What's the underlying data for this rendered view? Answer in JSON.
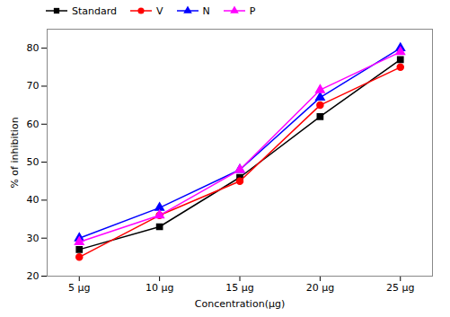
{
  "chart_data": {
    "type": "line",
    "xlabel": "Concentration(μg)",
    "ylabel": "% of inhibition",
    "x": [
      5,
      10,
      15,
      20,
      25
    ],
    "series": [
      {
        "name": "Standard",
        "color": "#000000",
        "marker": "square",
        "values": [
          27,
          33,
          46,
          62,
          77
        ]
      },
      {
        "name": "V",
        "color": "#ff0000",
        "marker": "circle",
        "values": [
          25,
          36,
          45,
          65,
          75
        ]
      },
      {
        "name": "N",
        "color": "#0000ff",
        "marker": "triangle",
        "values": [
          30,
          38,
          48,
          67,
          80
        ]
      },
      {
        "name": "P",
        "color": "#ff00ff",
        "marker": "triangle",
        "values": [
          29,
          36,
          48,
          69,
          79
        ]
      }
    ],
    "xlim": [
      3,
      27
    ],
    "ylim": [
      20,
      85
    ],
    "xticks": [
      {
        "value": 5,
        "label": "5 μg"
      },
      {
        "value": 10,
        "label": "10 μg"
      },
      {
        "value": 15,
        "label": "15 μg"
      },
      {
        "value": 20,
        "label": "20 μg"
      },
      {
        "value": 25,
        "label": "25 μg"
      }
    ],
    "yticks": [
      20,
      30,
      40,
      50,
      60,
      70,
      80
    ],
    "grid": false,
    "legend": "upper left"
  }
}
